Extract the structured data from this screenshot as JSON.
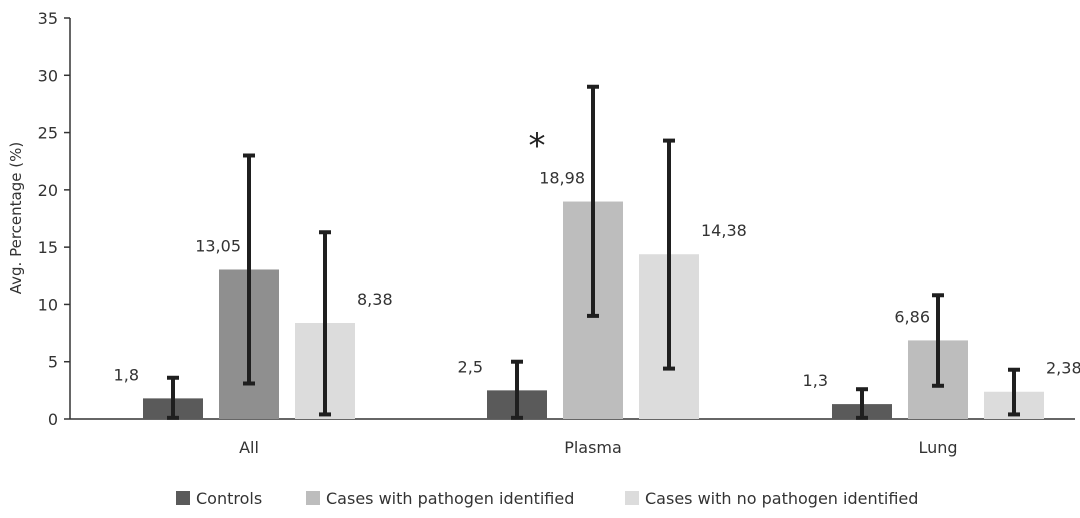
{
  "chart_data": {
    "type": "bar",
    "title": "",
    "xlabel": "",
    "ylabel": "Avg. Percentage (%)",
    "ylim": [
      0,
      35
    ],
    "yticks": [
      0,
      5,
      10,
      15,
      20,
      25,
      30,
      35
    ],
    "grid": false,
    "legend_position": "bottom",
    "categories": [
      "All",
      "Plasma",
      "Lung"
    ],
    "series": [
      {
        "name": "Controls",
        "color": "#5a5a5a",
        "values": [
          1.8,
          2.5,
          1.3
        ],
        "labels": [
          "1,8",
          "2,5",
          "1,3"
        ],
        "error_low": [
          0.1,
          0.1,
          0.1
        ],
        "error_high": [
          3.6,
          5.0,
          2.6
        ]
      },
      {
        "name": "Cases with pathogen identified",
        "color_per_category": [
          "#8f8f8f",
          "#bdbdbd",
          "#bdbdbd"
        ],
        "values": [
          13.05,
          18.98,
          6.86
        ],
        "labels": [
          "13,05",
          "18,98",
          "6,86"
        ],
        "error_low": [
          3.1,
          9.0,
          2.9
        ],
        "error_high": [
          23.0,
          29.0,
          10.8
        ]
      },
      {
        "name": "Cases with no pathogen identified",
        "color": "#dcdcdc",
        "values": [
          8.38,
          14.38,
          2.38
        ],
        "labels": [
          "8,38",
          "14,38",
          "2,38"
        ],
        "error_low": [
          0.4,
          4.4,
          0.4
        ],
        "error_high": [
          16.3,
          24.3,
          4.3
        ]
      }
    ],
    "legend_colors": [
      "#5a5a5a",
      "#bdbdbd",
      "#dcdcdc"
    ],
    "annotations": [
      {
        "text": "*",
        "category": "Plasma",
        "series_index": 1
      }
    ]
  }
}
